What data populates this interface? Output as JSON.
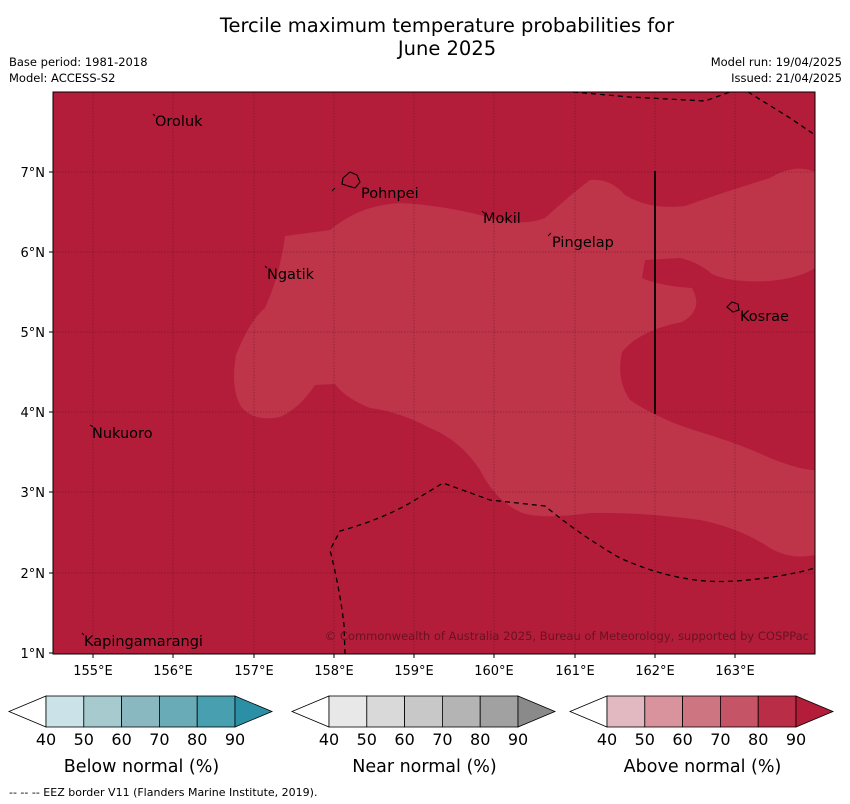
{
  "title_line1": "Tercile maximum temperature probabilities for",
  "title_line2": "June 2025",
  "meta_left": [
    "Base period: 1981-2018",
    "Model: ACCESS-S2"
  ],
  "meta_right": [
    "Model run: 19/04/2025",
    "Issued: 21/04/2025"
  ],
  "map": {
    "lon_range": [
      154.5,
      164.0
    ],
    "lat_range": [
      1.0,
      8.0
    ],
    "x_ticks": [
      "155°E",
      "156°E",
      "157°E",
      "158°E",
      "159°E",
      "160°E",
      "161°E",
      "162°E",
      "163°E"
    ],
    "y_ticks": [
      "1°N",
      "2°N",
      "3°N",
      "4°N",
      "5°N",
      "6°N",
      "7°N"
    ],
    "places": [
      {
        "name": "Oroluk",
        "lon": 155.8,
        "lat": 7.6
      },
      {
        "name": "Pohnpei",
        "lon": 158.3,
        "lat": 6.9
      },
      {
        "name": "Mokil",
        "lon": 159.8,
        "lat": 6.4
      },
      {
        "name": "Pingelap",
        "lon": 160.7,
        "lat": 6.2
      },
      {
        "name": "Ngatik",
        "lon": 157.1,
        "lat": 5.8
      },
      {
        "name": "Kosrae",
        "lon": 163.0,
        "lat": 5.3
      },
      {
        "name": "Nukuoro",
        "lon": 154.9,
        "lat": 3.8
      },
      {
        "name": "Kapingamarangi",
        "lon": 154.9,
        "lat": 1.2
      }
    ],
    "dominant_category": "Above normal",
    "dominant_probability_bin": "80-90",
    "inner_probability_bin": "70-80",
    "colors": {
      "above_80_90": "#b31d3a",
      "above_70_80": "#be3449"
    },
    "copyright": "© Commonwealth of Australia 2025, Bureau of Meteorology, supported by COSPPac"
  },
  "colorbars": [
    {
      "label": "Below normal (%)",
      "ticks": [
        "40",
        "50",
        "60",
        "70",
        "80",
        "90"
      ],
      "colors": [
        "#cbe3e8",
        "#a7cacf",
        "#8ab8c1",
        "#6aabb8",
        "#479fb0",
        "#2b8fa6"
      ]
    },
    {
      "label": "Near normal (%)",
      "ticks": [
        "40",
        "50",
        "60",
        "70",
        "80",
        "90"
      ],
      "colors": [
        "#e8e8e8",
        "#d9d9d9",
        "#c8c8c8",
        "#b4b4b4",
        "#a1a1a1",
        "#8a8a8a"
      ]
    },
    {
      "label": "Above normal (%)",
      "ticks": [
        "40",
        "50",
        "60",
        "70",
        "80",
        "90"
      ],
      "colors": [
        "#e2b9c0",
        "#d8939c",
        "#cd7681",
        "#c55566",
        "#b92d47",
        "#b31d3a"
      ]
    }
  ],
  "footer": "--  --  -- EEZ border V11 (Flanders Marine Institute, 2019)."
}
